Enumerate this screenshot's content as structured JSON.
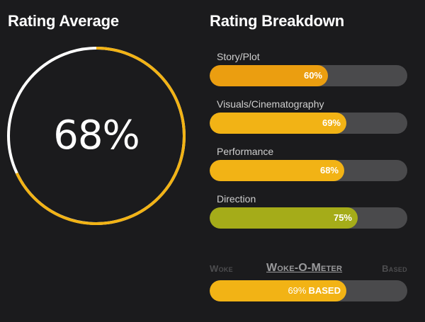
{
  "headings": {
    "average": "Rating Average",
    "breakdown": "Rating Breakdown"
  },
  "average": {
    "value": 68,
    "value_label": "68%",
    "fill_color": "#f2b315",
    "remainder_color": "#ffffff"
  },
  "breakdown": [
    {
      "label": "Story/Plot",
      "value": 60,
      "pct_label": "60%",
      "color": "#eb9e10"
    },
    {
      "label": "Visuals/Cinematography",
      "value": 69,
      "pct_label": "69%",
      "color": "#f2b315"
    },
    {
      "label": "Performance",
      "value": 68,
      "pct_label": "68%",
      "color": "#f2b315"
    },
    {
      "label": "Direction",
      "value": 75,
      "pct_label": "75%",
      "color": "#a5ac19"
    }
  ],
  "woke_meter": {
    "left_label": "Woke",
    "title": "Woke-O-Meter",
    "right_label": "Based",
    "value": 69,
    "pct_label": "69%",
    "verdict": "BASED",
    "color": "#f2b315"
  },
  "track_color": "#4a4a4c"
}
